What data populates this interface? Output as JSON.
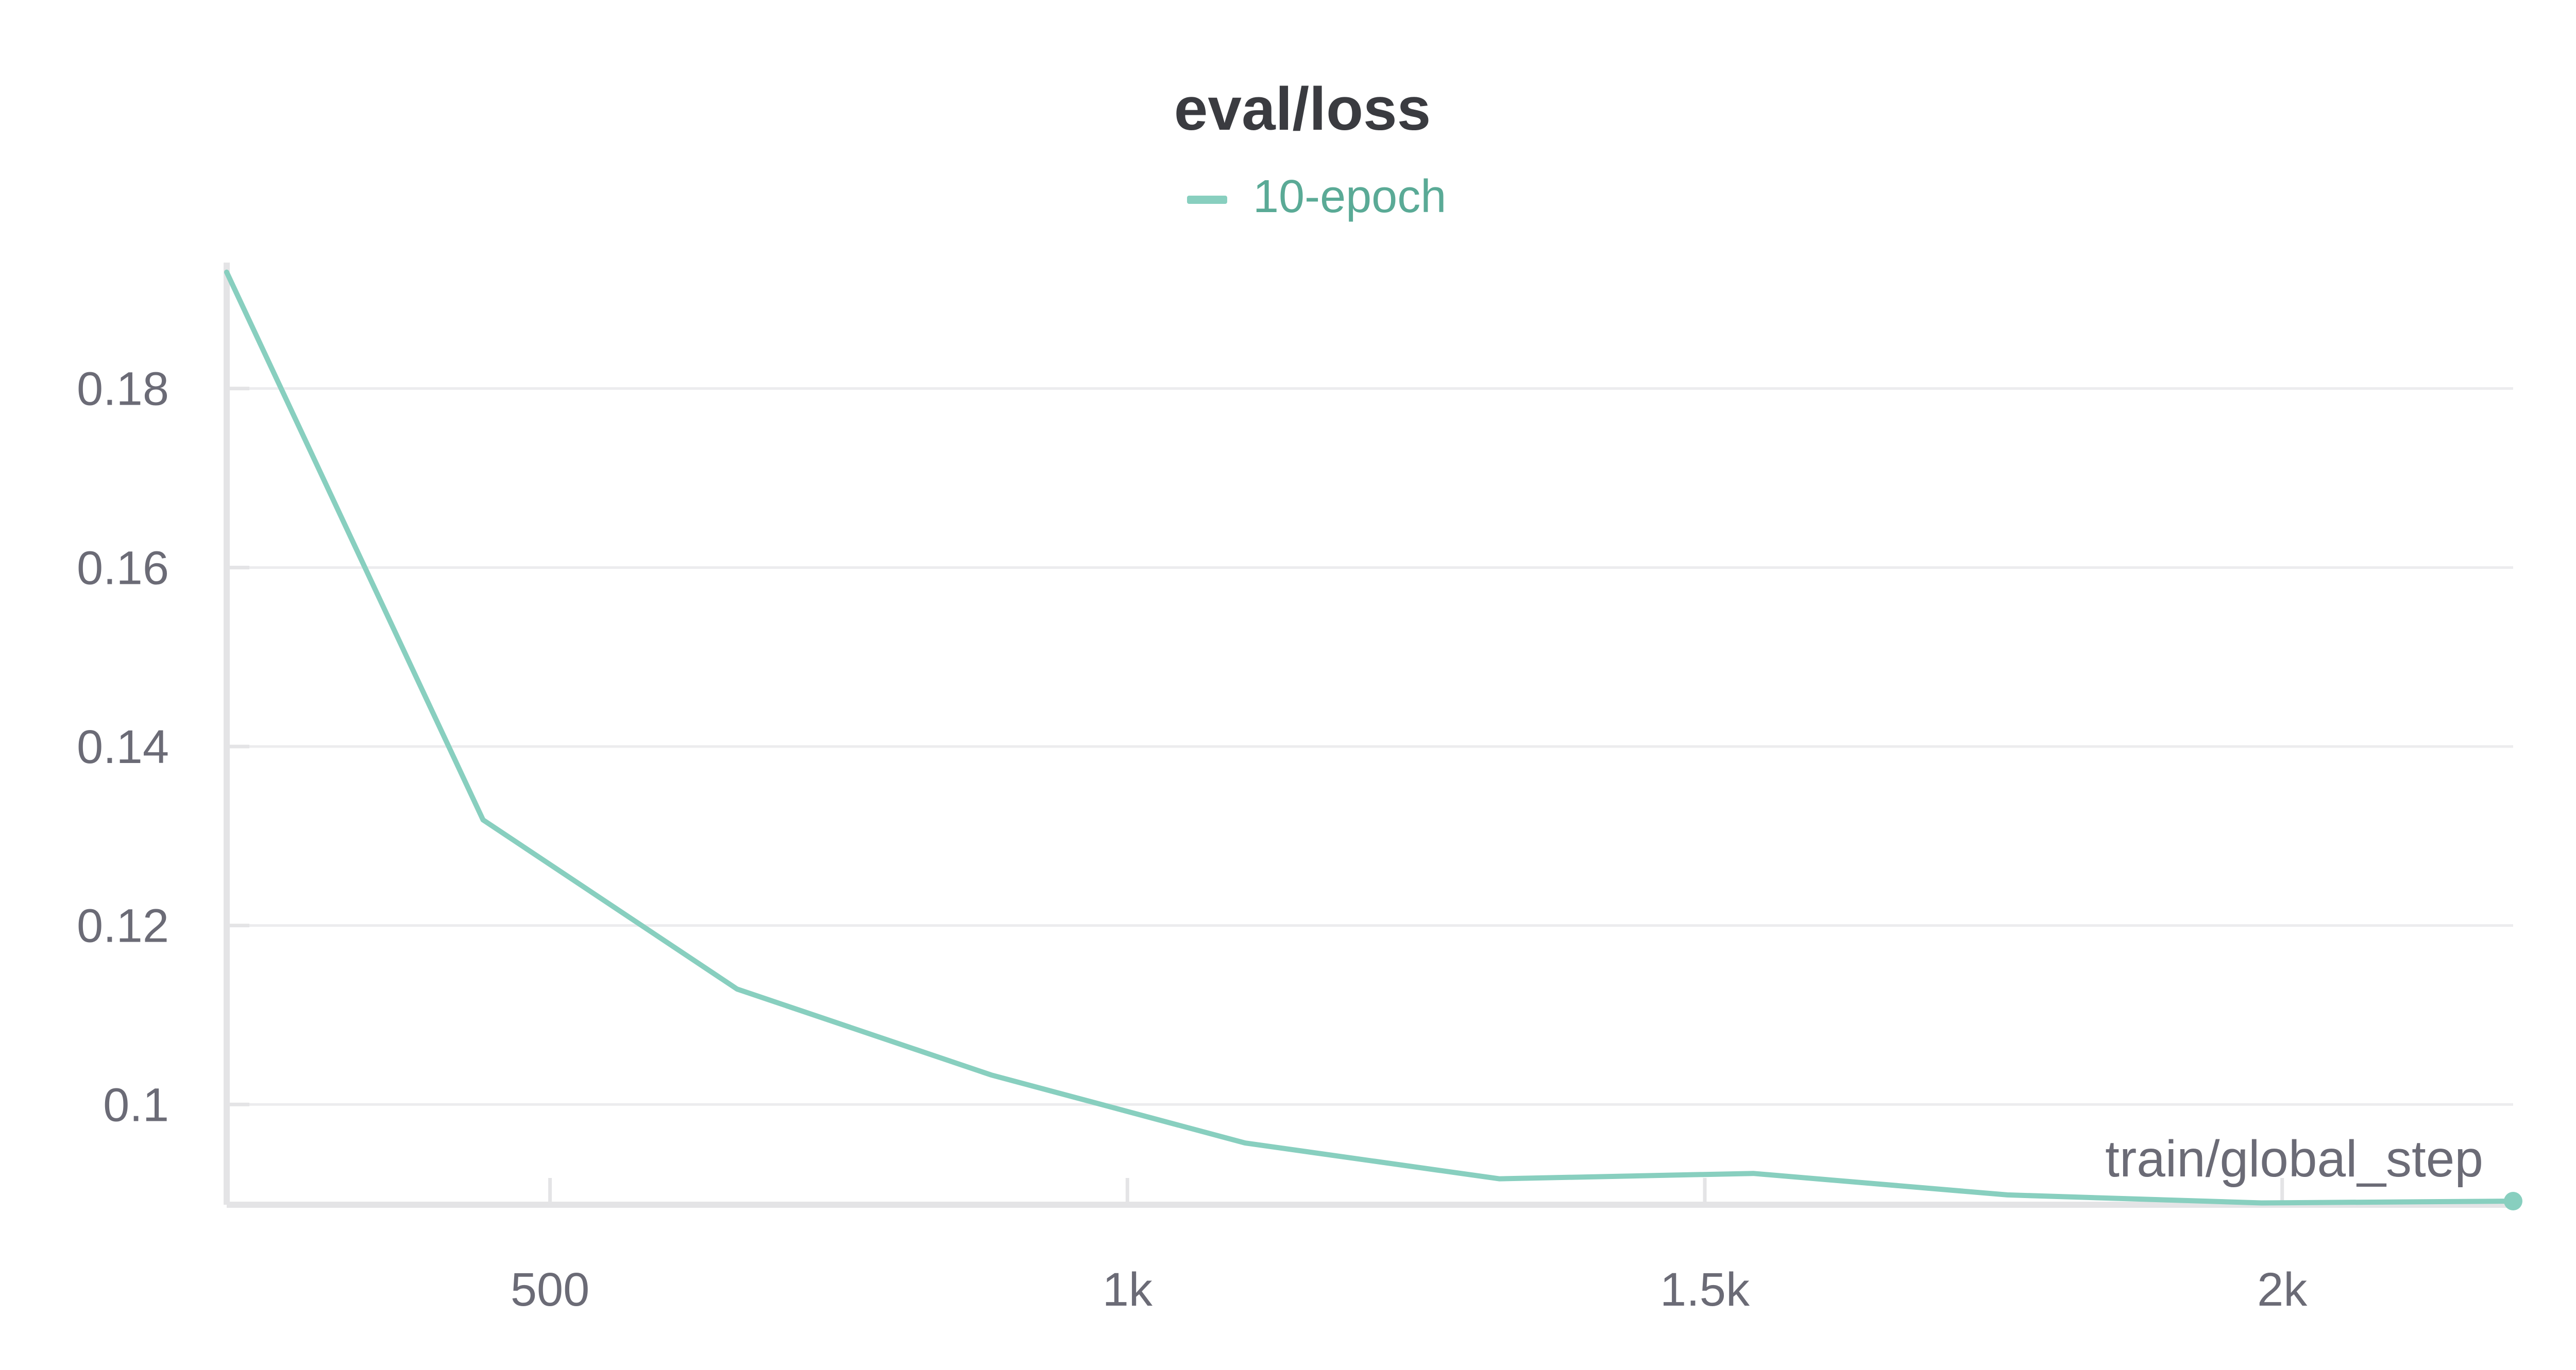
{
  "chart_data": {
    "type": "line",
    "title": "eval/loss",
    "xlabel": "train/global_step",
    "ylabel": "",
    "legend_placement": "top-center",
    "grid": true,
    "xlim": [
      220,
      2200
    ],
    "ylim": [
      0.0888,
      0.1935
    ],
    "x_ticks": [
      {
        "value": 500,
        "label": "500"
      },
      {
        "value": 1000,
        "label": "1k"
      },
      {
        "value": 1500,
        "label": "1.5k"
      },
      {
        "value": 2000,
        "label": "2k"
      }
    ],
    "y_ticks": [
      {
        "value": 0.1,
        "label": "0.1"
      },
      {
        "value": 0.12,
        "label": "0.12"
      },
      {
        "value": 0.14,
        "label": "0.14"
      },
      {
        "value": 0.16,
        "label": "0.16"
      },
      {
        "value": 0.18,
        "label": "0.18"
      }
    ],
    "series": [
      {
        "name": "10-epoch",
        "color": "#88cfbf",
        "x": [
          220,
          442,
          662,
          882,
          1102,
          1322,
          1542,
          1762,
          1982,
          2200
        ],
        "y": [
          0.193,
          0.1318,
          0.1129,
          0.1033,
          0.0957,
          0.0917,
          0.0923,
          0.0899,
          0.089,
          0.0892
        ]
      }
    ]
  },
  "colors": {
    "title": "#3a3b40",
    "tick_label": "#6b6b76",
    "axis": "#e4e4e6",
    "grid": "#ececee",
    "legend_text": "#5aaa96"
  }
}
